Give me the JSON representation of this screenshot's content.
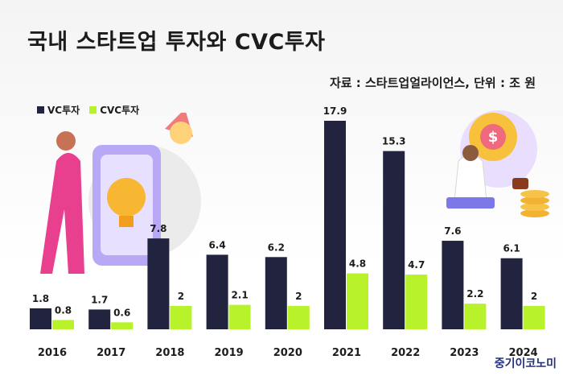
{
  "title": "국내 스타트업 투자와 CVC투자",
  "source": "자료 : 스타트업얼라이언스, 단위 : 조 원",
  "brand": "중기이코노미",
  "colors": {
    "vc": "#22243f",
    "cvc": "#b7f22a",
    "text": "#1c1c1c"
  },
  "chart_data": {
    "type": "bar",
    "categories": [
      "2016",
      "2017",
      "2018",
      "2019",
      "2020",
      "2021",
      "2022",
      "2023",
      "2024"
    ],
    "series": [
      {
        "name": "VC투자",
        "values": [
          1.8,
          1.7,
          7.8,
          6.4,
          6.2,
          17.9,
          15.3,
          7.6,
          6.1
        ]
      },
      {
        "name": "CVC투자",
        "values": [
          0.8,
          0.6,
          2,
          2.1,
          2,
          4.8,
          4.7,
          2.2,
          2
        ]
      }
    ],
    "legend_position": "top-left",
    "grid": false,
    "ylim": [
      0,
      18
    ]
  }
}
